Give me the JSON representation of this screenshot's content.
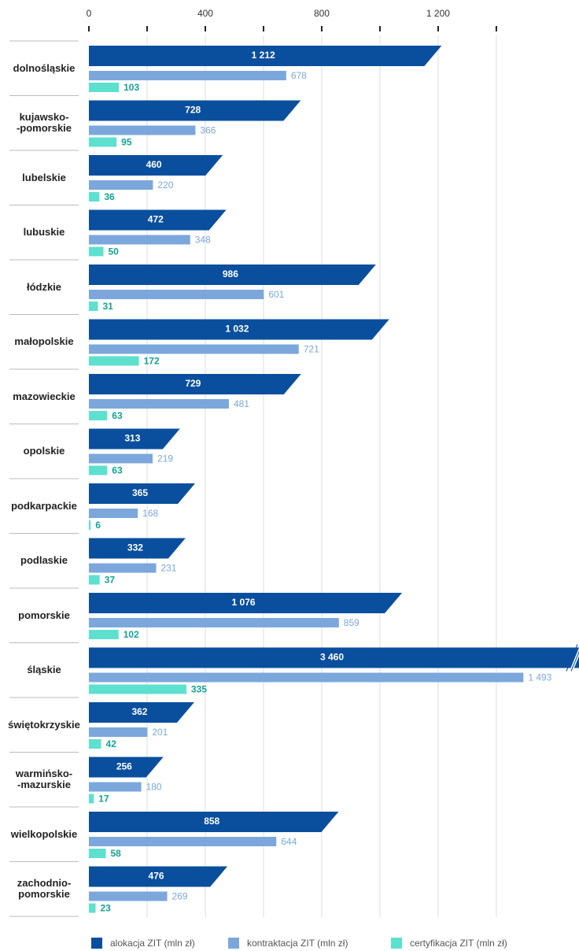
{
  "chart_data": {
    "type": "bar",
    "orientation": "horizontal",
    "categories": [
      "dolnośląskie",
      "kujawsko-\n-pomorskie",
      "lubelskie",
      "lubuskie",
      "łódzkie",
      "małopolskie",
      "mazowieckie",
      "opolskie",
      "podkarpackie",
      "podlaskie",
      "pomorskie",
      "śląskie",
      "świętokrzyskie",
      "warmińsko-\n-mazurskie",
      "wielkopolskie",
      "zachodnio-\npomorskie"
    ],
    "series": [
      {
        "name": "alokacja ZIT (mln zł)",
        "color": "#0a4f9e",
        "values": [
          1212,
          728,
          460,
          472,
          986,
          1032,
          729,
          313,
          365,
          332,
          1076,
          3460,
          362,
          256,
          858,
          476
        ],
        "value_labels": [
          "1 212",
          "728",
          "460",
          "472",
          "986",
          "1 032",
          "729",
          "313",
          "365",
          "332",
          "1 076",
          "3 460",
          "362",
          "256",
          "858",
          "476"
        ]
      },
      {
        "name": "kontraktacja ZIT (mln zł)",
        "color": "#7ba7dc",
        "values": [
          678,
          366,
          220,
          348,
          601,
          721,
          481,
          219,
          168,
          231,
          859,
          1493,
          201,
          180,
          644,
          269
        ],
        "value_labels": [
          "678",
          "366",
          "220",
          "348",
          "601",
          "721",
          "481",
          "219",
          "168",
          "231",
          "859",
          "1 493",
          "201",
          "180",
          "644",
          "269"
        ]
      },
      {
        "name": "certyfikacja ZIT (mln zł)",
        "color": "#5ee0cf",
        "values": [
          103,
          95,
          36,
          50,
          31,
          172,
          63,
          63,
          6,
          37,
          102,
          335,
          42,
          17,
          58,
          23
        ]
      }
    ],
    "xlim": [
      0,
      1684
    ],
    "xticks": [
      0,
      400,
      800,
      {
        "value": 1200,
        "label": "1 200"
      }
    ],
    "minor_xticks": [
      200,
      600,
      1000,
      1400
    ],
    "grid": true,
    "legend": "bottom"
  }
}
